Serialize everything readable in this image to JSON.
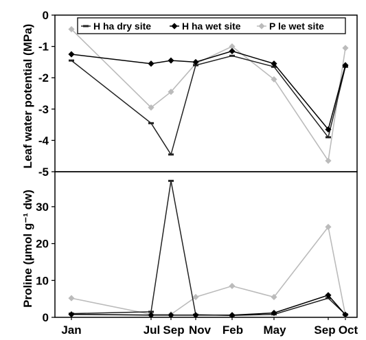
{
  "chart_data": [
    {
      "type": "line",
      "panel": "top",
      "ylabel": "Leaf water potential (MPa)",
      "ylim": [
        -5,
        0
      ],
      "yticks": [
        0,
        -1,
        -2,
        -3,
        -4,
        -5
      ],
      "x": [
        "Jan",
        "Jul",
        "Sep",
        "Nov",
        "Feb",
        "May",
        "Sep",
        "Oct"
      ],
      "legend": "top-right",
      "series": [
        {
          "name": "H ha dry site",
          "marker": "dash",
          "color": "#222222",
          "values": [
            -1.45,
            -3.45,
            -4.45,
            -1.6,
            -1.3,
            -1.65,
            -3.9,
            -1.65
          ]
        },
        {
          "name": "H ha wet site",
          "marker": "diamond",
          "color": "#000000",
          "values": [
            -1.25,
            -1.55,
            -1.45,
            -1.5,
            -1.15,
            -1.55,
            -3.65,
            -1.6
          ]
        },
        {
          "name": "P le wet site",
          "marker": "diamond",
          "color": "#bbbbbb",
          "values": [
            -0.45,
            -2.95,
            -2.45,
            -1.55,
            -1.0,
            -2.05,
            -4.65,
            -1.05
          ]
        }
      ]
    },
    {
      "type": "line",
      "panel": "bottom",
      "ylabel": "Proline (µmol g⁻¹ dw)",
      "ylim": [
        0,
        38
      ],
      "yticks": [
        0,
        10,
        20,
        30
      ],
      "x": [
        "Jan",
        "Jul",
        "Sep",
        "Nov",
        "Feb",
        "May",
        "Sep",
        "Oct"
      ],
      "series": [
        {
          "name": "H ha dry site",
          "marker": "dash",
          "color": "#222222",
          "values": [
            1.0,
            1.5,
            37.0,
            0.7,
            0.5,
            0.8,
            5.2,
            0.8
          ]
        },
        {
          "name": "H ha wet site",
          "marker": "diamond",
          "color": "#000000",
          "values": [
            0.8,
            0.6,
            0.6,
            0.6,
            0.6,
            1.2,
            6.0,
            0.7
          ]
        },
        {
          "name": "P le wet site",
          "marker": "diamond",
          "color": "#bbbbbb",
          "values": [
            5.2,
            0.8,
            0.8,
            5.5,
            8.5,
            5.5,
            24.5,
            0.6
          ]
        }
      ]
    }
  ]
}
